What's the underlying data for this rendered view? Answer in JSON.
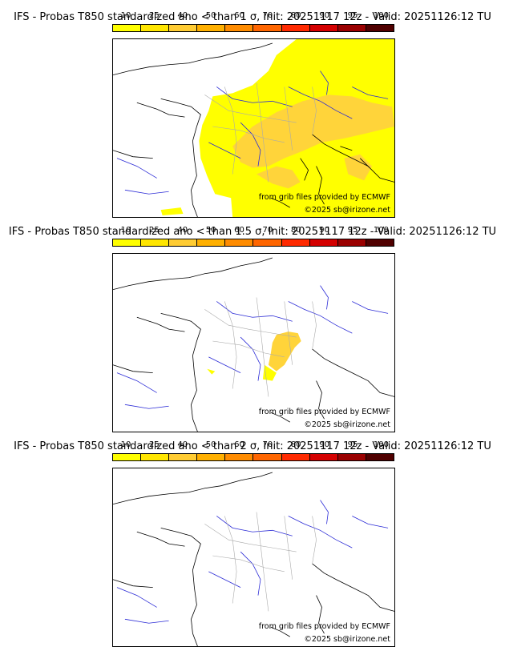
{
  "scale_labels": [
    "10",
    "25",
    "40",
    "50",
    "60",
    "70",
    "80",
    "90",
    "95",
    "100"
  ],
  "scale_colors": [
    "#ffff00",
    "#ffe600",
    "#ffcc33",
    "#ffb000",
    "#ff8c00",
    "#ff6600",
    "#ff2a00",
    "#d40000",
    "#9a0000",
    "#500000"
  ],
  "source_text": "from grib files provided by ECMWF",
  "copyright_text": "©2025 sb@irizone.net",
  "panels": [
    {
      "title": "IFS - Probas T850  standardized ano < than 1 σ, Init: 20251117 12z - Valid: 20251126:12 TU"
    },
    {
      "title": "IFS - Probas T850  standardized ano < than 1.5 σ, Init: 20251117 12z - Valid: 20251126:12 TU"
    },
    {
      "title": "IFS - Probas T850  standardized ano < than 2 σ, Init: 20251117 12z - Valid: 20251126:12 TU"
    }
  ],
  "colors": {
    "coast": "#000000",
    "rivers": "#2b2bd6",
    "borders": "#aaaaaa"
  }
}
